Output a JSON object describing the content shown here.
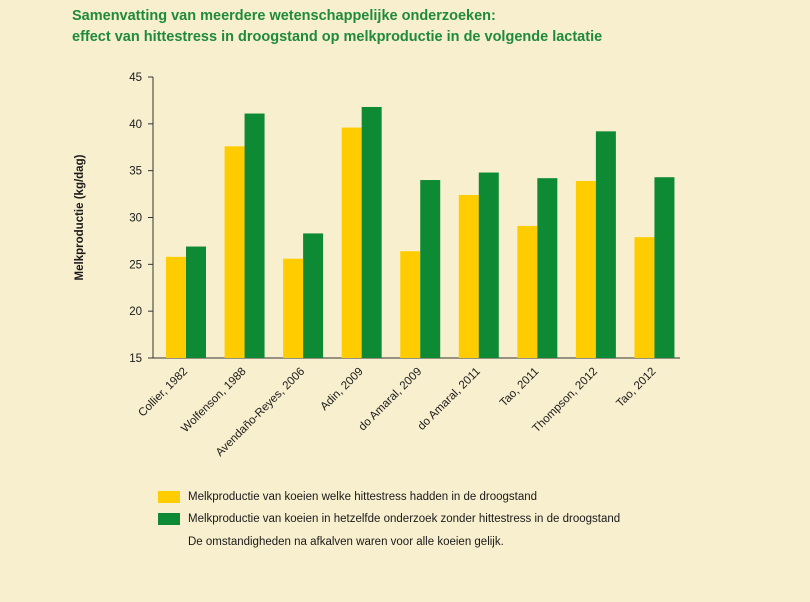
{
  "title": {
    "line1": "Samenvatting van meerdere wetenschappelijke onderzoeken:",
    "line2": "effect van hittestress in droogstand op melkproductie in de volgende lactatie"
  },
  "colors": {
    "heat_stress": "#ffcc00",
    "no_heat_stress": "#0e8a35",
    "title": "#1e8a3a",
    "background": "#f8efce"
  },
  "chart_data": {
    "type": "bar",
    "ylabel": "Melkproductie (kg/dag)",
    "xlabel": "",
    "ylim": [
      15,
      45
    ],
    "yticks": [
      15,
      20,
      25,
      30,
      35,
      40,
      45
    ],
    "grid": false,
    "categories": [
      "Collier, 1982",
      "Wolfenson, 1988",
      "Avendaño-Reyes, 2006",
      "Adin, 2009",
      "do Amaral, 2009",
      "do Amaral, 2011",
      "Tao, 2011",
      "Thompson, 2012",
      "Tao, 2012"
    ],
    "series": [
      {
        "name": "Melkproductie van koeien welke hittestress hadden in de droogstand",
        "color": "#ffcc00",
        "values": [
          25.8,
          37.6,
          25.6,
          39.6,
          26.4,
          32.4,
          29.1,
          33.9,
          27.9
        ]
      },
      {
        "name": "Melkproductie van koeien in hetzelfde onderzoek zonder hittestress in de droogstand",
        "color": "#0e8a35",
        "values": [
          26.9,
          41.1,
          28.3,
          41.8,
          34.0,
          34.8,
          34.2,
          39.2,
          34.3
        ]
      }
    ],
    "legend_position": "bottom"
  },
  "note": "De omstandigheden na afkalven waren voor alle koeien gelijk."
}
